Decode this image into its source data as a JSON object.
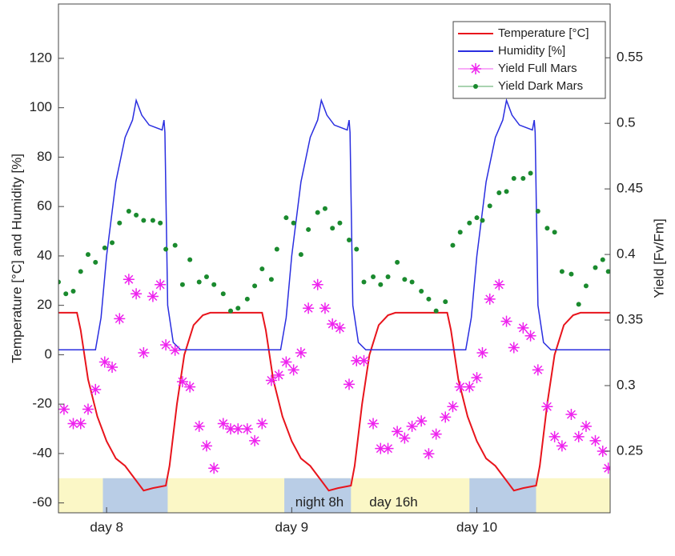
{
  "chart_data": {
    "type": "line",
    "ylabel": "Temperature [°C] and Humidity [%]",
    "y2label": "Yield [Fv/Fm]",
    "xlim": [
      7.74,
      10.72
    ],
    "ylim": [
      -64,
      142
    ],
    "y2lim": [
      0.203,
      0.591
    ],
    "xticks": [
      {
        "value": 8,
        "label": "day 8"
      },
      {
        "value": 9,
        "label": "day 9"
      },
      {
        "value": 10,
        "label": "day 10"
      }
    ],
    "yticks": [
      -60,
      -40,
      -20,
      0,
      20,
      40,
      60,
      80,
      100,
      120
    ],
    "y2ticks": [
      0.25,
      0.3,
      0.35,
      0.4,
      0.45,
      0.5,
      0.55
    ],
    "legend": "upper right",
    "day_nights": {
      "range": [
        -64,
        -50
      ],
      "day_color": "#fbf7c6",
      "night_color": "#b9cde6",
      "nights": [
        [
          7.98,
          8.33
        ],
        [
          8.96,
          9.32
        ],
        [
          9.96,
          10.32
        ]
      ]
    },
    "annotations": [
      {
        "text": "night 8h",
        "x": 9.15,
        "y": -60
      },
      {
        "text": "day 16h",
        "x": 9.55,
        "y": -60
      }
    ],
    "series": [
      {
        "name": "Temperature [°C]",
        "color": "#e8141c",
        "marker": "line",
        "axis": "y",
        "x": [
          7.74,
          7.84,
          7.86,
          7.9,
          7.95,
          8.0,
          8.05,
          8.1,
          8.15,
          8.2,
          8.25,
          8.32,
          8.34,
          8.38,
          8.42,
          8.47,
          8.52,
          8.56,
          8.84,
          8.86,
          8.9,
          8.95,
          9.0,
          9.05,
          9.1,
          9.15,
          9.2,
          9.25,
          9.32,
          9.34,
          9.38,
          9.42,
          9.47,
          9.52,
          9.56,
          9.84,
          9.86,
          9.9,
          9.95,
          10.0,
          10.05,
          10.1,
          10.15,
          10.2,
          10.25,
          10.32,
          10.34,
          10.38,
          10.42,
          10.47,
          10.52,
          10.56,
          10.72
        ],
        "values": [
          17,
          17,
          10,
          -10,
          -25,
          -35,
          -42,
          -45,
          -50,
          -55,
          -54,
          -53,
          -45,
          -20,
          0,
          12,
          16,
          17,
          17,
          10,
          -10,
          -25,
          -35,
          -42,
          -45,
          -50,
          -55,
          -54,
          -53,
          -45,
          -20,
          0,
          12,
          16,
          17,
          17,
          10,
          -10,
          -25,
          -35,
          -42,
          -45,
          -50,
          -55,
          -54,
          -53,
          -45,
          -20,
          0,
          12,
          16,
          17,
          17
        ]
      },
      {
        "name": "Humidity [%]",
        "color": "#2a2ee0",
        "marker": "line",
        "axis": "y",
        "x": [
          7.74,
          7.94,
          7.97,
          8.0,
          8.05,
          8.1,
          8.14,
          8.16,
          8.19,
          8.23,
          8.3,
          8.31,
          8.315,
          8.33,
          8.36,
          8.4,
          8.94,
          8.97,
          9.0,
          9.05,
          9.1,
          9.14,
          9.16,
          9.19,
          9.23,
          9.3,
          9.31,
          9.315,
          9.33,
          9.36,
          9.4,
          9.94,
          9.97,
          10.0,
          10.05,
          10.1,
          10.14,
          10.16,
          10.19,
          10.23,
          10.3,
          10.31,
          10.315,
          10.33,
          10.36,
          10.4,
          10.72
        ],
        "values": [
          2,
          2,
          15,
          40,
          70,
          88,
          95,
          103,
          97,
          93,
          91,
          95,
          90,
          20,
          5,
          2,
          2,
          15,
          40,
          70,
          88,
          95,
          103,
          97,
          93,
          91,
          95,
          90,
          20,
          5,
          2,
          2,
          15,
          40,
          70,
          88,
          95,
          103,
          97,
          93,
          91,
          95,
          90,
          20,
          5,
          2,
          2
        ]
      },
      {
        "name": "Yield Full Mars",
        "color": "#ee22ee",
        "marker": "asterisk",
        "axis": "y2",
        "x": [
          7.77,
          7.82,
          7.86,
          7.9,
          7.94,
          7.99,
          8.03,
          8.07,
          8.12,
          8.16,
          8.2,
          8.25,
          8.29,
          8.32,
          8.37,
          8.41,
          8.45,
          8.5,
          8.54,
          8.58,
          8.63,
          8.67,
          8.71,
          8.76,
          8.8,
          8.84,
          8.89,
          8.93,
          8.97,
          9.01,
          9.05,
          9.09,
          9.14,
          9.18,
          9.22,
          9.26,
          9.31,
          9.35,
          9.39,
          9.44,
          9.48,
          9.52,
          9.57,
          9.61,
          9.65,
          9.7,
          9.74,
          9.78,
          9.83,
          9.87,
          9.91,
          9.96,
          10.0,
          10.03,
          10.07,
          10.12,
          10.16,
          10.2,
          10.25,
          10.29,
          10.33,
          10.38,
          10.42,
          10.46,
          10.51,
          10.55,
          10.59,
          10.64,
          10.68,
          10.71
        ],
        "values": [
          0.282,
          0.271,
          0.271,
          0.282,
          0.297,
          0.318,
          0.314,
          0.351,
          0.381,
          0.37,
          0.325,
          0.368,
          0.377,
          0.331,
          0.327,
          0.303,
          0.299,
          0.269,
          0.254,
          0.237,
          0.271,
          0.267,
          0.267,
          0.267,
          0.258,
          0.271,
          0.304,
          0.308,
          0.318,
          0.312,
          0.325,
          0.359,
          0.377,
          0.359,
          0.347,
          0.344,
          0.301,
          0.319,
          0.319,
          0.271,
          0.252,
          0.252,
          0.265,
          0.26,
          0.269,
          0.273,
          0.248,
          0.263,
          0.276,
          0.284,
          0.299,
          0.299,
          0.306,
          0.325,
          0.366,
          0.377,
          0.349,
          0.329,
          0.344,
          0.338,
          0.312,
          0.284,
          0.261,
          0.254,
          0.278,
          0.261,
          0.269,
          0.258,
          0.25,
          0.237
        ]
      },
      {
        "name": "Yield Dark Mars",
        "color": "#1a8a2e",
        "marker": "dot",
        "axis": "y2",
        "x": [
          7.74,
          7.78,
          7.82,
          7.86,
          7.9,
          7.94,
          7.99,
          8.03,
          8.07,
          8.12,
          8.16,
          8.2,
          8.25,
          8.29,
          8.32,
          8.37,
          8.41,
          8.45,
          8.5,
          8.54,
          8.58,
          8.63,
          8.67,
          8.71,
          8.76,
          8.8,
          8.84,
          8.89,
          8.92,
          8.97,
          9.01,
          9.05,
          9.09,
          9.14,
          9.18,
          9.22,
          9.26,
          9.31,
          9.35,
          9.39,
          9.44,
          9.48,
          9.52,
          9.57,
          9.61,
          9.65,
          9.7,
          9.74,
          9.78,
          9.83,
          9.87,
          9.91,
          9.96,
          10.0,
          10.03,
          10.07,
          10.12,
          10.16,
          10.2,
          10.25,
          10.29,
          10.33,
          10.38,
          10.42,
          10.46,
          10.51,
          10.55,
          10.59,
          10.64,
          10.68,
          10.71
        ],
        "values": [
          0.379,
          0.37,
          0.372,
          0.387,
          0.4,
          0.394,
          0.405,
          0.409,
          0.424,
          0.433,
          0.43,
          0.426,
          0.426,
          0.424,
          0.404,
          0.407,
          0.377,
          0.396,
          0.379,
          0.383,
          0.377,
          0.37,
          0.357,
          0.359,
          0.366,
          0.376,
          0.389,
          0.381,
          0.404,
          0.428,
          0.424,
          0.4,
          0.419,
          0.432,
          0.435,
          0.42,
          0.424,
          0.411,
          0.404,
          0.379,
          0.383,
          0.377,
          0.383,
          0.394,
          0.381,
          0.379,
          0.372,
          0.366,
          0.357,
          0.364,
          0.407,
          0.417,
          0.424,
          0.428,
          0.426,
          0.437,
          0.447,
          0.448,
          0.458,
          0.458,
          0.462,
          0.433,
          0.42,
          0.417,
          0.387,
          0.385,
          0.362,
          0.376,
          0.39,
          0.396,
          0.387
        ]
      }
    ]
  }
}
